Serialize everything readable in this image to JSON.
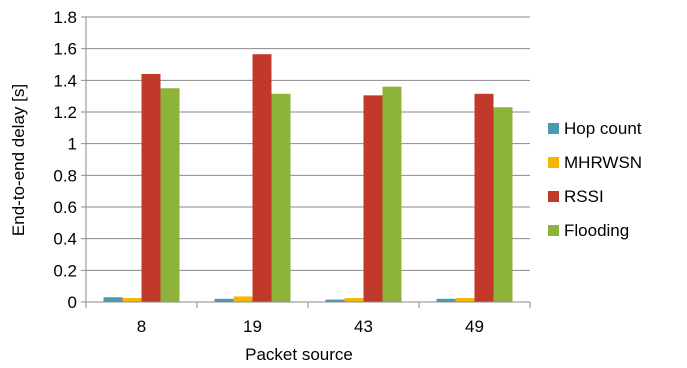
{
  "chart_data": {
    "type": "bar",
    "title": "",
    "xlabel": "Packet source",
    "ylabel": "End-to-end delay [s]",
    "categories": [
      "8",
      "19",
      "43",
      "49"
    ],
    "ylim": [
      0,
      1.8
    ],
    "yticks": [
      "0",
      "0.2",
      "0.4",
      "0.6",
      "0.8",
      "1",
      "1.2",
      "1.4",
      "1.6",
      "1.8"
    ],
    "grid": "horizontal",
    "legend_position": "right",
    "series": [
      {
        "name": "Hop count",
        "color": "#4A9AAE",
        "values": [
          0.03,
          0.02,
          0.015,
          0.02
        ]
      },
      {
        "name": "MHRWSN",
        "color": "#F5B800",
        "values": [
          0.025,
          0.035,
          0.025,
          0.025
        ]
      },
      {
        "name": "RSSI",
        "color": "#C0392B",
        "values": [
          1.44,
          1.565,
          1.305,
          1.315
        ]
      },
      {
        "name": "Flooding",
        "color": "#8DB33A",
        "values": [
          1.35,
          1.315,
          1.36,
          1.23
        ]
      }
    ]
  }
}
